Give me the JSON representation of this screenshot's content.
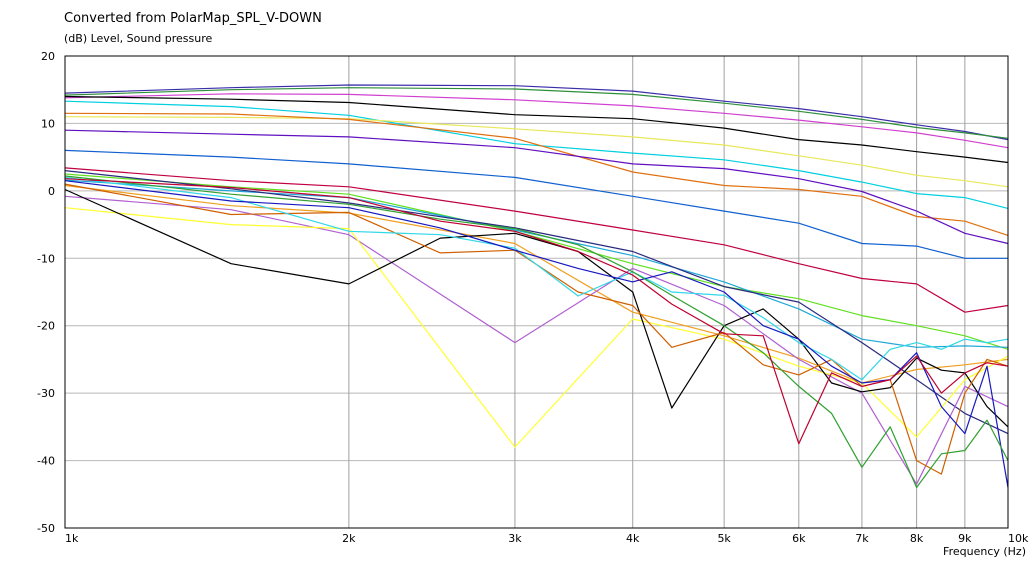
{
  "chart_data": {
    "type": "line",
    "title": "Converted from PolarMap_SPL_V-DOWN",
    "ylabel": "(dB)  Level, Sound pressure",
    "xlabel": "Frequency  (Hz)",
    "x_scale": "log",
    "xlim": [
      1000,
      10000
    ],
    "ylim": [
      -50,
      20
    ],
    "grid": true,
    "x_ticks": [
      {
        "value": 1000,
        "label": "1k"
      },
      {
        "value": 2000,
        "label": "2k"
      },
      {
        "value": 3000,
        "label": "3k"
      },
      {
        "value": 4000,
        "label": "4k"
      },
      {
        "value": 5000,
        "label": "5k"
      },
      {
        "value": 6000,
        "label": "6k"
      },
      {
        "value": 7000,
        "label": "7k"
      },
      {
        "value": 8000,
        "label": "8k"
      },
      {
        "value": 9000,
        "label": "9k"
      },
      {
        "value": 10000,
        "label": "10k"
      }
    ],
    "y_ticks": [
      {
        "value": 20,
        "label": "20"
      },
      {
        "value": 10,
        "label": "10"
      },
      {
        "value": 0,
        "label": "0"
      },
      {
        "value": -10,
        "label": "-10"
      },
      {
        "value": -20,
        "label": "-20"
      },
      {
        "value": -30,
        "label": "-30"
      },
      {
        "value": -40,
        "label": "-40"
      },
      {
        "value": -50,
        "label": "-50"
      }
    ],
    "series": [
      {
        "color": "#3a2ea8",
        "x": [
          1000,
          1500,
          2000,
          3000,
          4000,
          5000,
          6000,
          7000,
          8000,
          9000,
          10000
        ],
        "y": [
          14.5,
          15.3,
          15.7,
          15.6,
          14.8,
          13.3,
          12.2,
          11.0,
          9.8,
          8.8,
          7.6
        ]
      },
      {
        "color": "#2e8f3a",
        "x": [
          1000,
          1500,
          2000,
          3000,
          4000,
          5000,
          6000,
          7000,
          8000,
          9000,
          10000
        ],
        "y": [
          14.2,
          15.0,
          15.3,
          15.1,
          14.3,
          13.0,
          11.8,
          10.6,
          9.4,
          8.6,
          7.8
        ]
      },
      {
        "color": "#d040d0",
        "x": [
          1000,
          1500,
          2000,
          3000,
          4000,
          5000,
          6000,
          7000,
          8000,
          9000,
          10000
        ],
        "y": [
          13.8,
          14.4,
          14.3,
          13.5,
          12.6,
          11.5,
          10.5,
          9.5,
          8.6,
          7.5,
          6.4
        ]
      },
      {
        "color": "#000000",
        "x": [
          1000,
          1500,
          2000,
          3000,
          4000,
          5000,
          6000,
          7000,
          8000,
          9000,
          10000
        ],
        "y": [
          14.0,
          13.6,
          13.1,
          11.3,
          10.7,
          9.3,
          7.6,
          6.8,
          5.8,
          5.0,
          4.2
        ]
      },
      {
        "color": "#00d0e0",
        "x": [
          1000,
          1500,
          2000,
          3000,
          4000,
          5000,
          6000,
          7000,
          8000,
          9000,
          10000
        ],
        "y": [
          13.3,
          12.5,
          11.2,
          7.0,
          5.6,
          4.6,
          3.0,
          1.3,
          -0.4,
          -1.0,
          -2.6
        ]
      },
      {
        "color": "#e8e85a",
        "x": [
          1000,
          1500,
          2000,
          3000,
          4000,
          5000,
          6000,
          7000,
          8000,
          9000,
          10000
        ],
        "y": [
          11.0,
          10.9,
          10.7,
          9.2,
          8.0,
          6.8,
          5.2,
          3.8,
          2.3,
          1.5,
          0.6
        ]
      },
      {
        "color": "#e07010",
        "x": [
          1000,
          1500,
          2000,
          3000,
          4000,
          5000,
          6000,
          7000,
          8000,
          9000,
          10000
        ],
        "y": [
          11.5,
          11.4,
          10.6,
          7.8,
          2.8,
          0.8,
          0.2,
          -0.8,
          -3.8,
          -4.5,
          -6.6
        ]
      },
      {
        "color": "#6010c0",
        "x": [
          1000,
          1500,
          2000,
          3000,
          4000,
          5000,
          6000,
          7000,
          8000,
          9000,
          10000
        ],
        "y": [
          9.0,
          8.4,
          8.0,
          6.4,
          4.0,
          3.3,
          1.8,
          -0.1,
          -3.0,
          -6.3,
          -7.8
        ]
      },
      {
        "color": "#1060d0",
        "x": [
          1000,
          1500,
          2000,
          3000,
          4000,
          5000,
          6000,
          7000,
          8000,
          9000,
          10000
        ],
        "y": [
          6.0,
          5.0,
          4.0,
          2.0,
          -0.8,
          -3.0,
          -4.8,
          -7.8,
          -8.2,
          -10.0,
          -10.0
        ]
      },
      {
        "color": "#c00040",
        "x": [
          1000,
          1500,
          2000,
          3000,
          4000,
          5000,
          6000,
          7000,
          8000,
          9000,
          10000
        ],
        "y": [
          3.4,
          1.5,
          0.6,
          -3.0,
          -5.8,
          -8.0,
          -10.8,
          -13.0,
          -13.8,
          -18.0,
          -17.0
        ]
      },
      {
        "color": "#60e020",
        "x": [
          1000,
          1500,
          2000,
          3000,
          4000,
          5000,
          6000,
          7000,
          8000,
          9000,
          10000
        ],
        "y": [
          2.5,
          0.6,
          -0.5,
          -6.0,
          -10.8,
          -14.2,
          -16.0,
          -18.5,
          -20.0,
          -21.5,
          -23.5
        ]
      },
      {
        "color": "#20a8d8",
        "x": [
          1000,
          1500,
          2000,
          3000,
          4000,
          5000,
          6000,
          7000,
          8000,
          9000,
          10000
        ],
        "y": [
          1.6,
          0.0,
          -1.0,
          -5.8,
          -9.6,
          -13.5,
          -17.5,
          -22.0,
          -23.2,
          -23.0,
          -23.2
        ]
      },
      {
        "color": "#f0a020",
        "x": [
          1000,
          1500,
          2000,
          3000,
          4000,
          5000,
          6000,
          7000,
          8000,
          9000,
          10000
        ],
        "y": [
          0.8,
          -2.2,
          -3.3,
          -7.8,
          -18.0,
          -21.5,
          -24.8,
          -28.5,
          -26.5,
          -25.8,
          -25.0
        ]
      },
      {
        "color": "#2a2a80",
        "x": [
          1000,
          1500,
          2000,
          3000,
          4000,
          5000,
          6000,
          7000,
          8000,
          9000,
          10000
        ],
        "y": [
          3.0,
          0.3,
          -1.8,
          -5.5,
          -9.0,
          -14.2,
          -16.5,
          -22.5,
          -28.0,
          -33.0,
          -36.0
        ]
      },
      {
        "color": "#b060d0",
        "x": [
          1000,
          1500,
          2000,
          3000,
          4000,
          5000,
          6000,
          7000,
          8000,
          9000,
          10000
        ],
        "y": [
          -0.8,
          -2.8,
          -6.5,
          -22.5,
          -11.5,
          -17.0,
          -25.0,
          -30.0,
          -43.5,
          -29.0,
          -32.0
        ]
      },
      {
        "color": "#ffff30",
        "x": [
          1000,
          1500,
          2000,
          3000,
          4000,
          5000,
          6000,
          7000,
          8000,
          9000,
          10000
        ],
        "y": [
          -2.5,
          -5.0,
          -5.6,
          -38.0,
          -19.0,
          -22.0,
          -26.0,
          -28.5,
          -36.5,
          -28.0,
          -24.5
        ]
      },
      {
        "color": "#000000",
        "x": [
          1000,
          1500,
          2000,
          2500,
          3000,
          3500,
          4000,
          4400,
          5000,
          5500,
          6000,
          6500,
          7000,
          7500,
          8000,
          8500,
          9000,
          9500,
          10000
        ],
        "y": [
          0.2,
          -10.8,
          -13.8,
          -7.0,
          -6.3,
          -9.0,
          -15.0,
          -32.2,
          -20.0,
          -17.5,
          -22.0,
          -28.5,
          -29.8,
          -29.2,
          -24.8,
          -26.6,
          -27.0,
          -32.0,
          -35.0
        ]
      },
      {
        "color": "#d06000",
        "x": [
          1000,
          1500,
          2000,
          2500,
          3000,
          3500,
          4000,
          4400,
          5000,
          5500,
          6000,
          6500,
          7000,
          7500,
          8000,
          8500,
          9000,
          9500,
          10000
        ],
        "y": [
          1.0,
          -3.5,
          -3.2,
          -9.2,
          -8.8,
          -15.0,
          -17.0,
          -23.2,
          -21.0,
          -25.8,
          -27.3,
          -25.0,
          -29.0,
          -28.0,
          -40.0,
          -42.0,
          -30.0,
          -25.0,
          -26.0
        ]
      },
      {
        "color": "#30d8e8",
        "x": [
          1000,
          1500,
          2000,
          2500,
          3000,
          3500,
          4000,
          4400,
          5000,
          5500,
          6000,
          6500,
          7000,
          7500,
          8000,
          8500,
          9000,
          9500,
          10000
        ],
        "y": [
          2.0,
          -1.0,
          -6.0,
          -6.5,
          -8.5,
          -15.6,
          -12.0,
          -15.0,
          -15.5,
          -18.8,
          -22.5,
          -25.0,
          -28.0,
          -23.5,
          -22.5,
          -23.5,
          -22.0,
          -22.5,
          -22.0
        ]
      },
      {
        "color": "#1818c0",
        "x": [
          1000,
          1500,
          2000,
          2500,
          3000,
          3500,
          4000,
          4400,
          5000,
          5500,
          6000,
          6500,
          7000,
          7500,
          8000,
          8500,
          9000,
          9500,
          10000
        ],
        "y": [
          1.5,
          -1.5,
          -2.5,
          -5.5,
          -8.8,
          -11.5,
          -13.5,
          -12.0,
          -15.0,
          -20.0,
          -22.0,
          -26.0,
          -28.5,
          -28.0,
          -24.0,
          -32.0,
          -36.0,
          -26.0,
          -44.0
        ]
      },
      {
        "color": "#30a030",
        "x": [
          1000,
          1500,
          2000,
          2500,
          3000,
          3500,
          4000,
          4400,
          5000,
          5500,
          6000,
          6500,
          7000,
          7500,
          8000,
          8500,
          9000,
          9500,
          10000
        ],
        "y": [
          2.2,
          -0.5,
          -2.0,
          -4.2,
          -5.6,
          -8.0,
          -12.0,
          -15.5,
          -20.0,
          -24.0,
          -29.0,
          -33.0,
          -41.0,
          -35.0,
          -44.0,
          -39.0,
          -38.5,
          -34.0,
          -40.0
        ]
      },
      {
        "color": "#c00030",
        "x": [
          1000,
          1500,
          2000,
          2500,
          3000,
          3500,
          4000,
          4400,
          5000,
          5500,
          6000,
          6500,
          7000,
          7500,
          8000,
          8500,
          9000,
          9500,
          10000
        ],
        "y": [
          1.8,
          0.5,
          -1.0,
          -4.5,
          -6.0,
          -9.0,
          -12.5,
          -16.8,
          -21.2,
          -21.5,
          -37.5,
          -27.0,
          -29.0,
          -28.0,
          -24.5,
          -30.0,
          -27.0,
          -25.5,
          -26.0
        ]
      }
    ]
  }
}
